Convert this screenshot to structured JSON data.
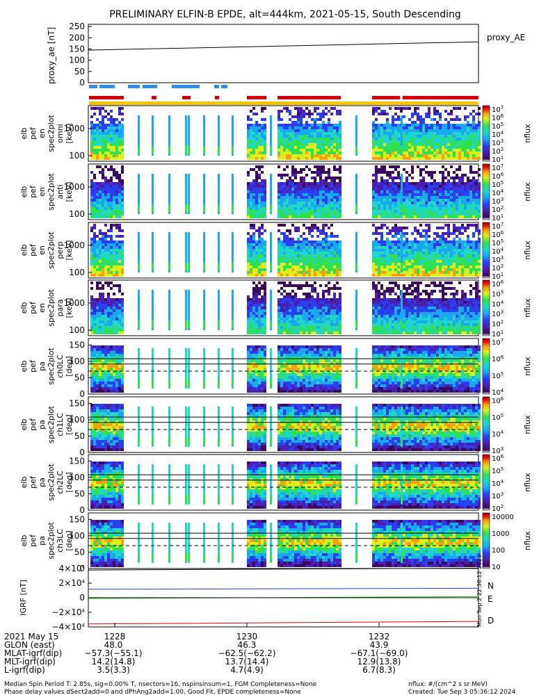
{
  "title": "PRELIMINARY ELFIN-B EPDE, alt=444km, 2021-05-15, South Descending",
  "colors": {
    "ae_line": "#000000",
    "bar_blue": "#2f8fe6",
    "bar_red": "#d60000",
    "bar_yellow": "#f5c400",
    "bfield_N": "#1f3fd0",
    "bfield_E": "#22c41c",
    "bfield_D": "#d60000"
  },
  "proxy_ae": {
    "label": "proxy_ae [nT]",
    "legend": "proxy_AE",
    "yticks": [
      "250",
      "200",
      "150",
      "100",
      "50",
      "0"
    ],
    "ylim": [
      0,
      260
    ],
    "start": 145,
    "end": 182
  },
  "panels": [
    {
      "id": "p1",
      "ylabel": "elb pef en spec2plot omni [keV]",
      "zlabel": "nflux",
      "yticks": [
        "1000",
        "100"
      ],
      "cbar_ticks": [
        "10^7",
        "10^6",
        "10^5",
        "10^4",
        "10^3",
        "10^2",
        "10^1"
      ]
    },
    {
      "id": "p2",
      "ylabel": "elb pef en spec2plot anti [keV]",
      "zlabel": "nflux",
      "yticks": [
        "1000",
        "100"
      ],
      "cbar_ticks": [
        "10^7",
        "10^6",
        "10^5",
        "10^4",
        "10^3",
        "10^2",
        "10^1"
      ]
    },
    {
      "id": "p3",
      "ylabel": "elb pef en spec2plot perp [keV]",
      "zlabel": "nflux",
      "yticks": [
        "1000",
        "100"
      ],
      "cbar_ticks": [
        "10^7",
        "10^6",
        "10^5",
        "10^4",
        "10^3",
        "10^2",
        "10^1"
      ]
    },
    {
      "id": "p4",
      "ylabel": "elb pef en spec2plot para [keV]",
      "zlabel": "nflux",
      "yticks": [
        "1000",
        "100"
      ],
      "cbar_ticks": [
        "10^6",
        "10^5",
        "10^4",
        "10^3",
        "10^2",
        "10^1"
      ]
    },
    {
      "id": "p5",
      "ylabel": "elb pef pa spec2plot ch0LC [deg]",
      "zlabel": "nflux",
      "yticks": [
        "150",
        "100",
        "50",
        "0"
      ],
      "cbar_ticks": [
        "10^7",
        "10^6",
        "10^5",
        "10^4"
      ]
    },
    {
      "id": "p6",
      "ylabel": "elb pef pa spec2plot ch1LC [deg]",
      "zlabel": "nflux",
      "yticks": [
        "150",
        "100",
        "50",
        "0"
      ],
      "cbar_ticks": [
        "10^6",
        "10^5",
        "10^4",
        "10^3"
      ]
    },
    {
      "id": "p7",
      "ylabel": "elb pef pa spec2plot ch2LC [deg]",
      "zlabel": "nflux",
      "yticks": [
        "150",
        "100",
        "50",
        "0"
      ],
      "cbar_ticks": [
        "10^6",
        "10^5",
        "10^4",
        "10^3",
        "10^2"
      ]
    },
    {
      "id": "p8",
      "ylabel": "elb pef pa spec2plot ch3LC [deg]",
      "zlabel": "nflux",
      "yticks": [
        "150",
        "100",
        "50",
        "0"
      ],
      "cbar_ticks": [
        "10000",
        "1000",
        "100",
        "10"
      ]
    }
  ],
  "bfield": {
    "label": "IGRF [nT]",
    "yticks": [
      "4×10^4",
      "2×10^4",
      "0",
      "−2×10^4",
      "−4×10^4"
    ],
    "ylim": [
      -40000,
      40000
    ],
    "legend": [
      "N",
      "E",
      "D"
    ],
    "N": [
      11500,
      13000
    ],
    "E": [
      -1000,
      1500
    ],
    "D": [
      -36000,
      -32500
    ],
    "total": [
      38000,
      40500
    ]
  },
  "side_stamp": "Mon Sep  2 22:36:12 2024",
  "xaxis": {
    "ticks": [
      "1228",
      "1230",
      "1232"
    ],
    "rows": [
      {
        "label": "2021 May 15",
        "values": [
          "",
          "",
          ""
        ]
      },
      {
        "label": "GLON (east)",
        "values": [
          "48.0",
          "46.3",
          "43.9"
        ]
      },
      {
        "label": "MLAT-igrf(dip)",
        "values": [
          "−57.3(−55.1)",
          "−62.5(−62.2)",
          "−67.1(−69.0)"
        ]
      },
      {
        "label": "MLT-igrf(dip)",
        "values": [
          "14.2(14.8)",
          "13.7(14.4)",
          "12.9(13.8)"
        ]
      },
      {
        "label": "L-igrf(dip)",
        "values": [
          "3.5(3.3)",
          "4.7(4.9)",
          "6.7(8.3)"
        ]
      }
    ]
  },
  "footer": {
    "line1": "Median Spin Period T: 2.85s, sig=0.00% T, nsectors=16, nspinsinsum=1, FGM Completeness=None",
    "line2": "Phase delay values dSect2add=0 and dPhAng2add=1.00, Good Fit, EPDE completeness=None",
    "units": "nflux: #/(cm^2 s sr MeV)",
    "created": "Created: Tue Sep  3 05:36:12 2024"
  }
}
